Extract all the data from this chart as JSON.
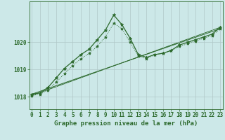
{
  "line1_x": [
    0,
    1,
    2,
    3,
    4,
    5,
    6,
    7,
    8,
    9,
    10,
    11,
    12,
    13,
    14,
    15,
    16,
    17,
    18,
    19,
    20,
    21,
    22,
    23
  ],
  "line1_y": [
    1018.1,
    1018.15,
    1018.35,
    1018.7,
    1019.05,
    1019.3,
    1019.55,
    1019.75,
    1020.1,
    1020.45,
    1021.0,
    1020.65,
    1020.15,
    1019.55,
    1019.45,
    1019.55,
    1019.6,
    1019.7,
    1019.9,
    1020.0,
    1020.1,
    1020.2,
    1020.3,
    1020.55
  ],
  "line2_x": [
    0,
    1,
    2,
    3,
    4,
    5,
    6,
    7,
    8,
    9,
    10,
    11,
    12,
    13,
    14,
    15,
    16,
    17,
    18,
    19,
    20,
    21,
    22,
    23
  ],
  "line2_y": [
    1018.05,
    1018.1,
    1018.25,
    1018.55,
    1018.85,
    1019.15,
    1019.4,
    1019.6,
    1019.85,
    1020.2,
    1020.7,
    1020.5,
    1020.0,
    1019.5,
    1019.4,
    1019.55,
    1019.6,
    1019.7,
    1019.85,
    1019.95,
    1020.05,
    1020.15,
    1020.25,
    1020.5
  ],
  "line3_x": [
    0,
    23
  ],
  "line3_y": [
    1018.05,
    1020.55
  ],
  "line4_x": [
    0,
    23
  ],
  "line4_y": [
    1018.1,
    1020.5
  ],
  "main_color": "#2d6a2d",
  "bg_color": "#cce8e8",
  "grid_color": "#b0c8c8",
  "yticks": [
    1018,
    1019,
    1020
  ],
  "xlim": [
    0,
    23
  ],
  "ylim": [
    1017.55,
    1021.5
  ],
  "xlabel": "Graphe pression niveau de la mer (hPa)",
  "tick_fontsize": 5.5,
  "xlabel_fontsize": 6.5
}
